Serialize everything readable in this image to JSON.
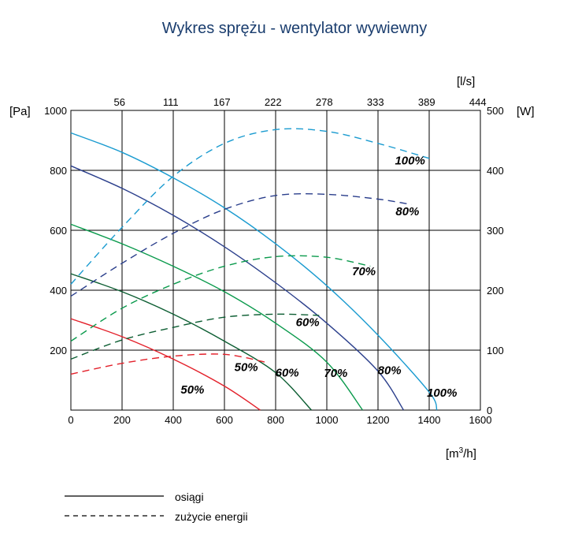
{
  "chart_data": {
    "type": "line",
    "title": "Wykres sprężu - wentylator wywiewny",
    "x_axis": {
      "label_base": "[m",
      "label_sup": "3",
      "label_end": "/h]",
      "range": [
        0,
        1600
      ],
      "ticks": [
        "0",
        "200",
        "400",
        "600",
        "800",
        "1000",
        "1200",
        "1400",
        "1600"
      ]
    },
    "x2_axis": {
      "label": "[l/s]",
      "ticks": [
        "56",
        "111",
        "167",
        "222",
        "278",
        "333",
        "389",
        "444"
      ]
    },
    "y_axis": {
      "label": "[Pa]",
      "range": [
        0,
        1000
      ],
      "ticks": [
        "1000",
        "800",
        "600",
        "400",
        "200"
      ]
    },
    "y2_axis": {
      "label": "[W]",
      "range": [
        0,
        500
      ],
      "ticks": [
        "500",
        "400",
        "300",
        "200",
        "100",
        "0"
      ]
    },
    "grid": true,
    "legend": {
      "placement": "bottom-left",
      "items": [
        {
          "style": "solid",
          "label": "osiągi"
        },
        {
          "style": "dashed",
          "label": "zużycie energii"
        }
      ]
    },
    "series": [
      {
        "name": "100%",
        "kind": "pressure",
        "color": "#1a9bd0",
        "x": [
          0,
          200,
          400,
          600,
          800,
          1000,
          1200,
          1400,
          1430
        ],
        "y": [
          925,
          860,
          775,
          675,
          555,
          415,
          250,
          60,
          0
        ],
        "label_at": [
          1450,
          45
        ]
      },
      {
        "name": "80%",
        "kind": "pressure",
        "color": "#2b3f8c",
        "x": [
          0,
          200,
          400,
          600,
          800,
          1000,
          1200,
          1300
        ],
        "y": [
          815,
          740,
          650,
          545,
          425,
          290,
          130,
          0
        ],
        "label_at": [
          1245,
          120
        ]
      },
      {
        "name": "70%",
        "kind": "pressure",
        "color": "#0a9a4c",
        "x": [
          0,
          200,
          400,
          600,
          800,
          1000,
          1140
        ],
        "y": [
          620,
          555,
          480,
          395,
          290,
          160,
          0
        ],
        "label_at": [
          1035,
          110
        ]
      },
      {
        "name": "60%",
        "kind": "pressure",
        "color": "#0d5e33",
        "x": [
          0,
          200,
          400,
          600,
          800,
          940
        ],
        "y": [
          455,
          395,
          320,
          230,
          125,
          0
        ],
        "label_at": [
          845,
          112
        ]
      },
      {
        "name": "50%",
        "kind": "pressure",
        "color": "#e3202a",
        "x": [
          0,
          200,
          400,
          600,
          740
        ],
        "y": [
          305,
          245,
          170,
          80,
          0
        ],
        "label_at": [
          475,
          55
        ]
      },
      {
        "name": "100%",
        "kind": "power",
        "color": "#1a9bd0",
        "x": [
          0,
          200,
          400,
          600,
          800,
          1000,
          1200,
          1400
        ],
        "y": [
          210,
          305,
          390,
          445,
          468,
          465,
          445,
          420
        ],
        "label_at": [
          1325,
          410
        ]
      },
      {
        "name": "80%",
        "kind": "power",
        "color": "#2b3f8c",
        "x": [
          0,
          200,
          400,
          600,
          800,
          1000,
          1200,
          1330
        ],
        "y": [
          190,
          245,
          295,
          335,
          358,
          360,
          352,
          343
        ],
        "label_at": [
          1315,
          325
        ]
      },
      {
        "name": "70%",
        "kind": "power",
        "color": "#0a9a4c",
        "x": [
          0,
          200,
          400,
          600,
          800,
          1000,
          1170
        ],
        "y": [
          115,
          170,
          210,
          240,
          256,
          255,
          240
        ],
        "label_at": [
          1145,
          225
        ]
      },
      {
        "name": "60%",
        "kind": "power",
        "color": "#0d5e33",
        "x": [
          0,
          200,
          400,
          600,
          800,
          970
        ],
        "y": [
          85,
          117,
          138,
          155,
          160,
          158
        ],
        "label_at": [
          925,
          140
        ]
      },
      {
        "name": "50%",
        "kind": "power",
        "color": "#e3202a",
        "x": [
          0,
          200,
          400,
          600,
          760
        ],
        "y": [
          60,
          78,
          90,
          93,
          80
        ],
        "label_at": [
          685,
          65
        ]
      }
    ]
  }
}
